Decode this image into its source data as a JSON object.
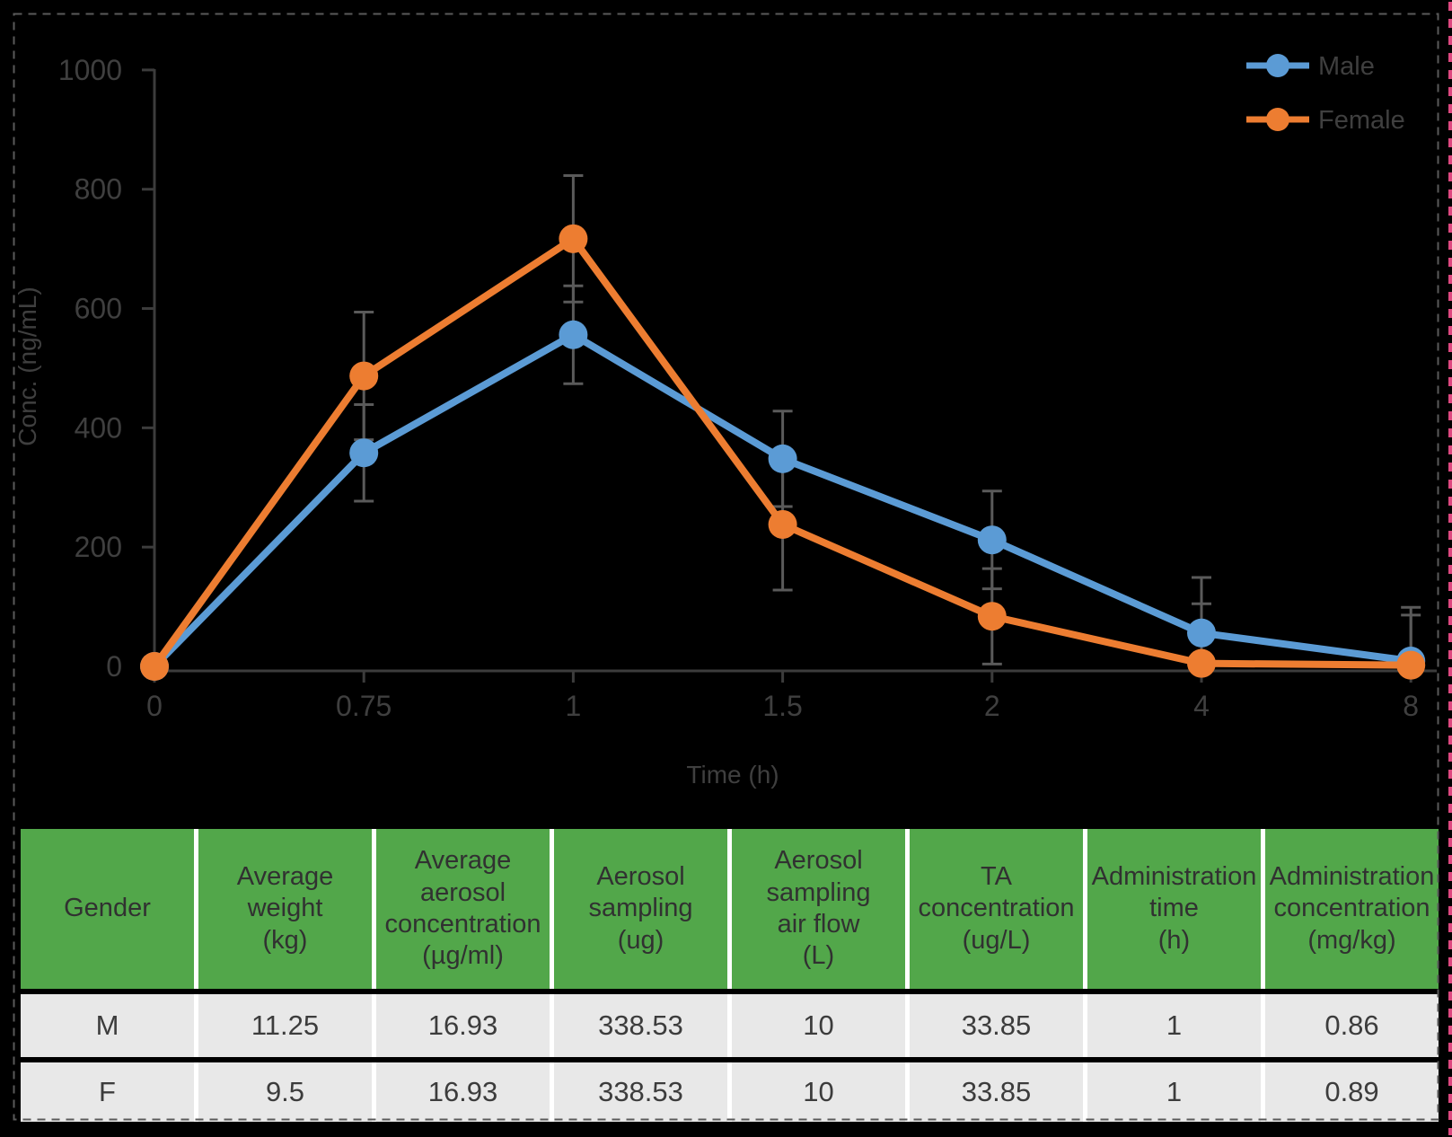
{
  "chart": {
    "legend": [
      {
        "label": "Male",
        "color": "#5B9BD5"
      },
      {
        "label": "Female",
        "color": "#ED7D31"
      }
    ],
    "y_axis": {
      "title": "Conc. (ng/mL)",
      "tick_labels": [
        "0",
        "200",
        "400",
        "600",
        "800",
        "1000"
      ]
    },
    "x_axis": {
      "title": "Time (h)",
      "tick_labels": [
        "0",
        "0.75",
        "1",
        "1.5",
        "2",
        "4",
        "8"
      ]
    }
  },
  "chart_data": {
    "type": "line",
    "categories": [
      0,
      0.75,
      1,
      1.5,
      2,
      4,
      8
    ],
    "series": [
      {
        "name": "Male",
        "color": "#5B9BD5",
        "values": [
          0,
          358,
          556,
          348,
          212,
          56,
          9
        ],
        "errors": [
          0,
          81,
          82,
          80,
          82,
          93,
          90
        ]
      },
      {
        "name": "Female",
        "color": "#ED7D31",
        "values": [
          0,
          487,
          717,
          238,
          84,
          5,
          2
        ],
        "errors": [
          0,
          107,
          106,
          110,
          80,
          100,
          84
        ]
      }
    ],
    "title": "",
    "xlabel": "Time (h)",
    "ylabel": "Conc. (ng/mL)",
    "ylim": [
      0,
      1000
    ],
    "y_tick_step": 200,
    "grid": false,
    "legend_position": "top-right",
    "markers": "circle",
    "error_bars": true
  },
  "table": {
    "headers": [
      "Gender",
      "Average\nweight\n(kg)",
      "Average\naerosol\nconcentration\n(µg/ml)",
      "Aerosol\nsampling\n(ug)",
      "Aerosol\nsampling\nair flow\n(L)",
      "TA\nconcentration\n(ug/L)",
      "Administration\ntime\n(h)",
      "Administration\nconcentration\n(mg/kg)"
    ],
    "rows": [
      [
        "M",
        "11.25",
        "16.93",
        "338.53",
        "10",
        "33.85",
        "1",
        "0.86"
      ],
      [
        "F",
        "9.5",
        "16.93",
        "338.53",
        "10",
        "33.85",
        "1",
        "0.89"
      ]
    ]
  },
  "colors": {
    "male": "#5B9BD5",
    "female": "#ED7D31",
    "error_bar": "#5A5A5A",
    "axis_text": "#3F3F3F",
    "axis_line": "#3C3C3C",
    "table_header_bg": "#52A74A",
    "table_row_bg": "#E8E8E8",
    "selection_border": "#5A5A5A",
    "edge_marker": "#DE4880",
    "background": "#000000"
  }
}
